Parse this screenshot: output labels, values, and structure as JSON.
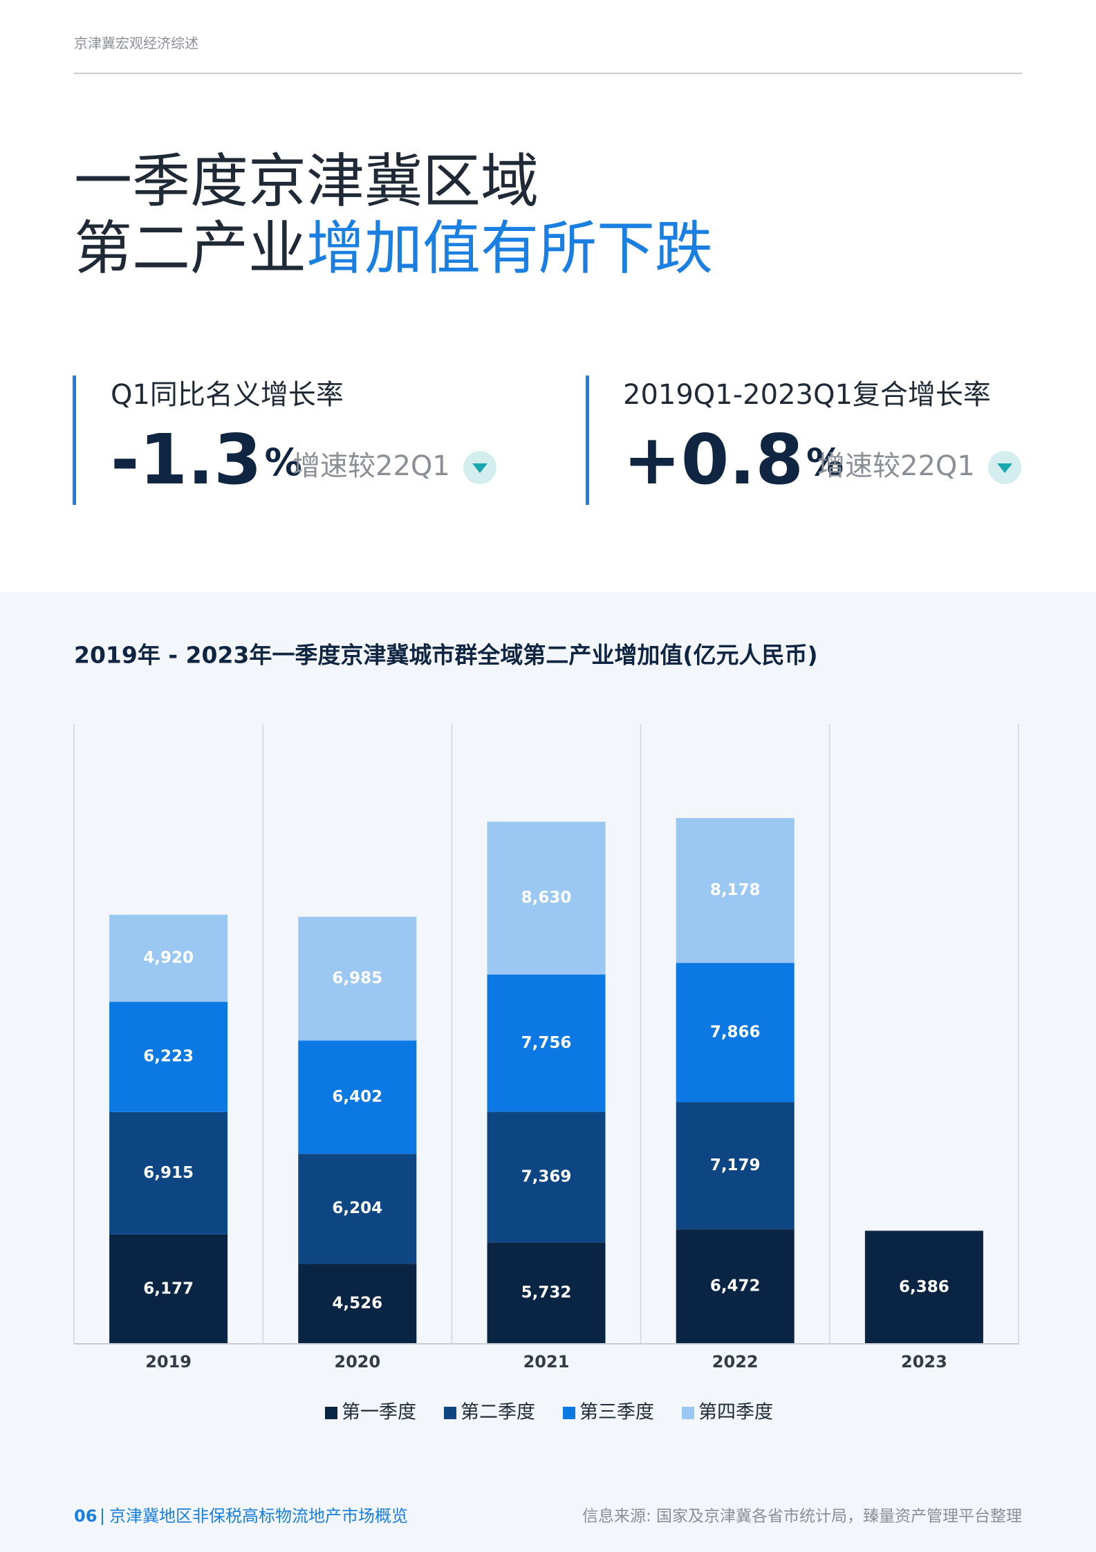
{
  "header": {
    "section": "京津冀宏观经济综述"
  },
  "title": {
    "line1": "一季度京津冀区域",
    "line2_plain": "第二产业",
    "line2_highlight": "增加值有所下跌"
  },
  "kpis": [
    {
      "label": "Q1同比名义增长率",
      "value": "-1.3",
      "unit": "%",
      "note": "增速较22Q1"
    },
    {
      "label": "2019Q1-2023Q1复合增长率",
      "value": "+0.8",
      "unit": "%",
      "note": "增速较22Q1"
    }
  ],
  "chart_data": {
    "type": "bar",
    "stacked": true,
    "title": "2019年 - 2023年一季度京津冀城市群全域第二产业增加值(亿元人民币)",
    "categories": [
      "2019",
      "2020",
      "2021",
      "2022",
      "2023"
    ],
    "series": [
      {
        "name": "第一季度",
        "color": "#0a2544",
        "values": [
          6177,
          4526,
          5732,
          6472,
          6386
        ],
        "value_labels": [
          "6,177",
          "4,526",
          "5,732",
          "6,472",
          "6,386"
        ]
      },
      {
        "name": "第二季度",
        "color": "#0d4682",
        "values": [
          6915,
          6204,
          7369,
          7179,
          null
        ],
        "value_labels": [
          "6,915",
          "6,204",
          "7,369",
          "7,179",
          null
        ]
      },
      {
        "name": "第三季度",
        "color": "#0b78e3",
        "values": [
          6223,
          6402,
          7756,
          7866,
          null
        ],
        "value_labels": [
          "6,223",
          "6,402",
          "7,756",
          "7,866",
          null
        ]
      },
      {
        "name": "第四季度",
        "color": "#9ac8f2",
        "values": [
          4920,
          6985,
          8630,
          8178,
          null
        ],
        "value_labels": [
          "4,920",
          "6,985",
          "8,630",
          "8,178",
          null
        ]
      }
    ],
    "ylim": [
      0,
      35000
    ],
    "legend": "bottom"
  },
  "footer": {
    "page": "06",
    "publication": "京津冀地区非保税高标物流地产市场概览",
    "source": "信息来源: 国家及京津冀各省市统计局，臻量资产管理平台整理"
  }
}
